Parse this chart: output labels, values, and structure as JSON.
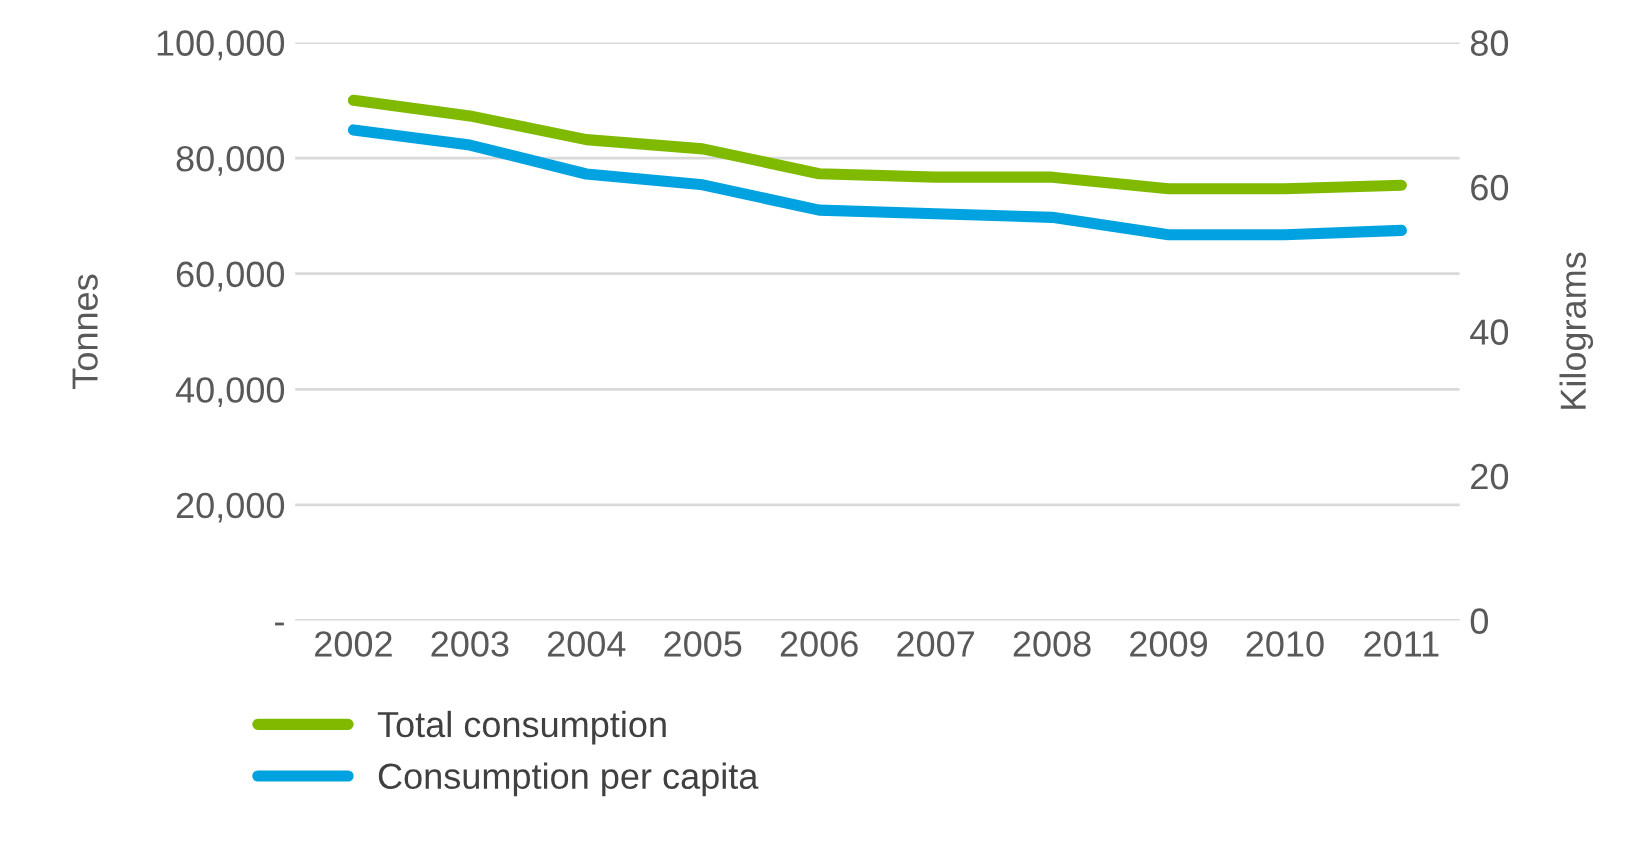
{
  "chart_data": {
    "type": "line",
    "ylabel": "Tonnes",
    "y2label": "Kilograms",
    "categories": [
      "2002",
      "2003",
      "2004",
      "2005",
      "2006",
      "2007",
      "2008",
      "2009",
      "2010",
      "2011"
    ],
    "series": [
      {
        "name": "Total consumption",
        "color": "#7fba00",
        "values": [
          90000,
          87300,
          83200,
          81600,
          77300,
          76700,
          76700,
          74700,
          74700,
          75300
        ]
      },
      {
        "name": "Consumption per capita",
        "color": "#00a2e0",
        "axis": "y2",
        "values": [
          67.9,
          65.8,
          61.8,
          60.3,
          56.8,
          56.3,
          55.8,
          53.4,
          53.4,
          54.0
        ]
      }
    ],
    "ylim": [
      0,
      100000
    ],
    "yticks": [
      {
        "value": 0,
        "label": "-"
      },
      {
        "value": 20000,
        "label": "20,000"
      },
      {
        "value": 40000,
        "label": "40,000"
      },
      {
        "value": 60000,
        "label": "60,000"
      },
      {
        "value": 80000,
        "label": "80,000"
      },
      {
        "value": 100000,
        "label": "100,000"
      }
    ],
    "y2lim": [
      0,
      80
    ],
    "y2ticks": [
      0,
      20,
      40,
      60,
      80
    ],
    "grid": "y",
    "legend": "bottom left",
    "marker": "none",
    "line_style": "solid"
  }
}
